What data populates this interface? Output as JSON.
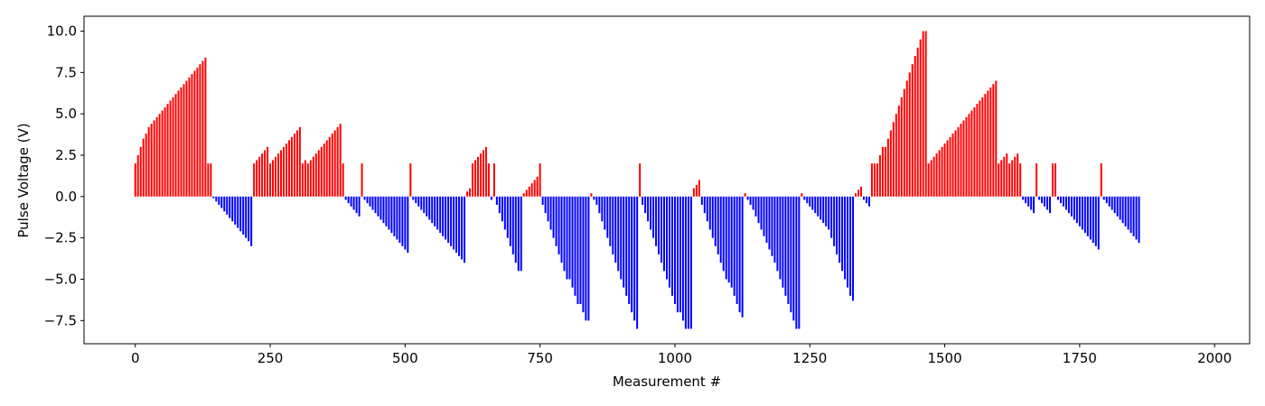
{
  "chart_data": {
    "type": "bar",
    "title": "",
    "xlabel": "Measurement #",
    "ylabel": "Pulse Voltage (V)",
    "xlim": [
      -95,
      2065
    ],
    "ylim": [
      -8.9,
      10.9
    ],
    "xticks": [
      0,
      250,
      500,
      750,
      1000,
      1250,
      1500,
      1750,
      2000
    ],
    "xtick_labels": [
      "0",
      "250",
      "500",
      "750",
      "1000",
      "1250",
      "1500",
      "1750",
      "2000"
    ],
    "yticks": [
      -7.5,
      -5.0,
      -2.5,
      0.0,
      2.5,
      5.0,
      7.5,
      10.0
    ],
    "ytick_labels": [
      "−7.5",
      "−5.0",
      "−2.5",
      "0.0",
      "2.5",
      "5.0",
      "7.5",
      "10.0"
    ],
    "grid": false,
    "bar_width": 2,
    "colors": {
      "positive": "#ff0000",
      "negative": "#0000ff"
    },
    "x_start": 0,
    "x_step": 5,
    "values": [
      2.0,
      2.5,
      3.0,
      3.5,
      3.8,
      4.2,
      4.4,
      4.6,
      4.8,
      5.0,
      5.2,
      5.4,
      5.6,
      5.8,
      6.0,
      6.2,
      6.4,
      6.6,
      6.8,
      7.0,
      7.2,
      7.4,
      7.6,
      7.8,
      8.0,
      8.2,
      8.4,
      2.0,
      2.0,
      -0.1,
      -0.3,
      -0.5,
      -0.7,
      -0.9,
      -1.1,
      -1.3,
      -1.5,
      -1.7,
      -1.9,
      -2.1,
      -2.3,
      -2.5,
      -2.7,
      -3.0,
      2.0,
      2.2,
      2.4,
      2.6,
      2.8,
      3.0,
      2.0,
      2.2,
      2.4,
      2.6,
      2.8,
      3.0,
      3.2,
      3.4,
      3.6,
      3.8,
      4.0,
      4.2,
      2.0,
      2.2,
      2.0,
      2.2,
      2.4,
      2.6,
      2.8,
      3.0,
      3.2,
      3.4,
      3.6,
      3.8,
      4.0,
      4.2,
      4.4,
      2.0,
      -0.2,
      -0.4,
      -0.6,
      -0.8,
      -1.0,
      -1.2,
      2.0,
      -0.2,
      -0.4,
      -0.6,
      -0.8,
      -1.0,
      -1.2,
      -1.4,
      -1.6,
      -1.8,
      -2.0,
      -2.2,
      -2.4,
      -2.6,
      -2.8,
      -3.0,
      -3.2,
      -3.4,
      2.0,
      -0.2,
      -0.4,
      -0.6,
      -0.8,
      -1.0,
      -1.2,
      -1.4,
      -1.6,
      -1.8,
      -2.0,
      -2.2,
      -2.4,
      -2.6,
      -2.8,
      -3.0,
      -3.2,
      -3.4,
      -3.6,
      -3.8,
      -4.0,
      0.3,
      0.5,
      2.0,
      2.2,
      2.4,
      2.6,
      2.8,
      3.0,
      2.0,
      -0.2,
      2.0,
      -0.5,
      -1.0,
      -1.5,
      -2.0,
      -2.5,
      -3.0,
      -3.5,
      -4.0,
      -4.5,
      -4.5,
      0.2,
      0.4,
      0.6,
      0.8,
      1.0,
      1.2,
      2.0,
      -0.5,
      -1.0,
      -1.5,
      -2.0,
      -2.5,
      -3.0,
      -3.5,
      -4.0,
      -4.5,
      -5.0,
      -5.0,
      -5.5,
      -6.0,
      -6.5,
      -6.5,
      -7.0,
      -7.5,
      -7.5,
      0.2,
      -0.2,
      -0.5,
      -1.0,
      -1.5,
      -2.0,
      -2.5,
      -3.0,
      -3.5,
      -4.0,
      -4.5,
      -5.0,
      -5.5,
      -6.0,
      -6.5,
      -7.0,
      -7.5,
      -8.0,
      2.0,
      -0.5,
      -1.0,
      -1.5,
      -2.0,
      -2.5,
      -3.0,
      -3.5,
      -4.0,
      -4.5,
      -5.0,
      -5.5,
      -6.0,
      -6.5,
      -7.0,
      -7.0,
      -7.5,
      -8.0,
      -8.0,
      -8.0,
      0.5,
      0.7,
      1.0,
      -0.5,
      -1.0,
      -1.5,
      -2.0,
      -2.5,
      -3.0,
      -3.5,
      -4.0,
      -4.5,
      -5.0,
      -5.2,
      -5.5,
      -6.0,
      -6.5,
      -7.0,
      -7.3,
      0.2,
      -0.2,
      -0.5,
      -0.8,
      -1.2,
      -1.6,
      -2.0,
      -2.4,
      -2.8,
      -3.2,
      -3.6,
      -4.0,
      -4.5,
      -5.0,
      -5.5,
      -6.0,
      -6.5,
      -7.0,
      -7.5,
      -8.0,
      -8.0,
      0.2,
      -0.2,
      -0.4,
      -0.6,
      -0.8,
      -1.0,
      -1.2,
      -1.4,
      -1.6,
      -1.8,
      -2.0,
      -2.5,
      -3.0,
      -3.5,
      -4.0,
      -4.5,
      -5.0,
      -5.5,
      -6.0,
      -6.3,
      0.2,
      0.4,
      0.6,
      -0.2,
      -0.4,
      -0.6,
      2.0,
      2.0,
      2.0,
      2.5,
      3.0,
      3.0,
      3.5,
      4.0,
      4.5,
      5.0,
      5.5,
      6.0,
      6.5,
      7.0,
      7.5,
      8.0,
      8.5,
      9.0,
      9.5,
      10.0,
      10.0,
      2.0,
      2.2,
      2.4,
      2.6,
      2.8,
      3.0,
      3.2,
      3.4,
      3.6,
      3.8,
      4.0,
      4.2,
      4.4,
      4.6,
      4.8,
      5.0,
      5.2,
      5.4,
      5.6,
      5.8,
      6.0,
      6.2,
      6.4,
      6.6,
      6.8,
      7.0,
      2.0,
      2.2,
      2.4,
      2.6,
      2.0,
      2.2,
      2.4,
      2.6,
      2.0,
      -0.2,
      -0.4,
      -0.6,
      -0.8,
      -1.0,
      2.0,
      -0.2,
      -0.4,
      -0.6,
      -0.8,
      -1.0,
      2.0,
      2.0,
      -0.2,
      -0.4,
      -0.6,
      -0.8,
      -1.0,
      -1.2,
      -1.4,
      -1.6,
      -1.8,
      -2.0,
      -2.2,
      -2.4,
      -2.6,
      -2.8,
      -3.0,
      -3.2,
      2.0,
      -0.2,
      -0.4,
      -0.6,
      -0.8,
      -1.0,
      -1.2,
      -1.4,
      -1.6,
      -1.8,
      -2.0,
      -2.2,
      -2.4,
      -2.6,
      -2.8
    ]
  }
}
